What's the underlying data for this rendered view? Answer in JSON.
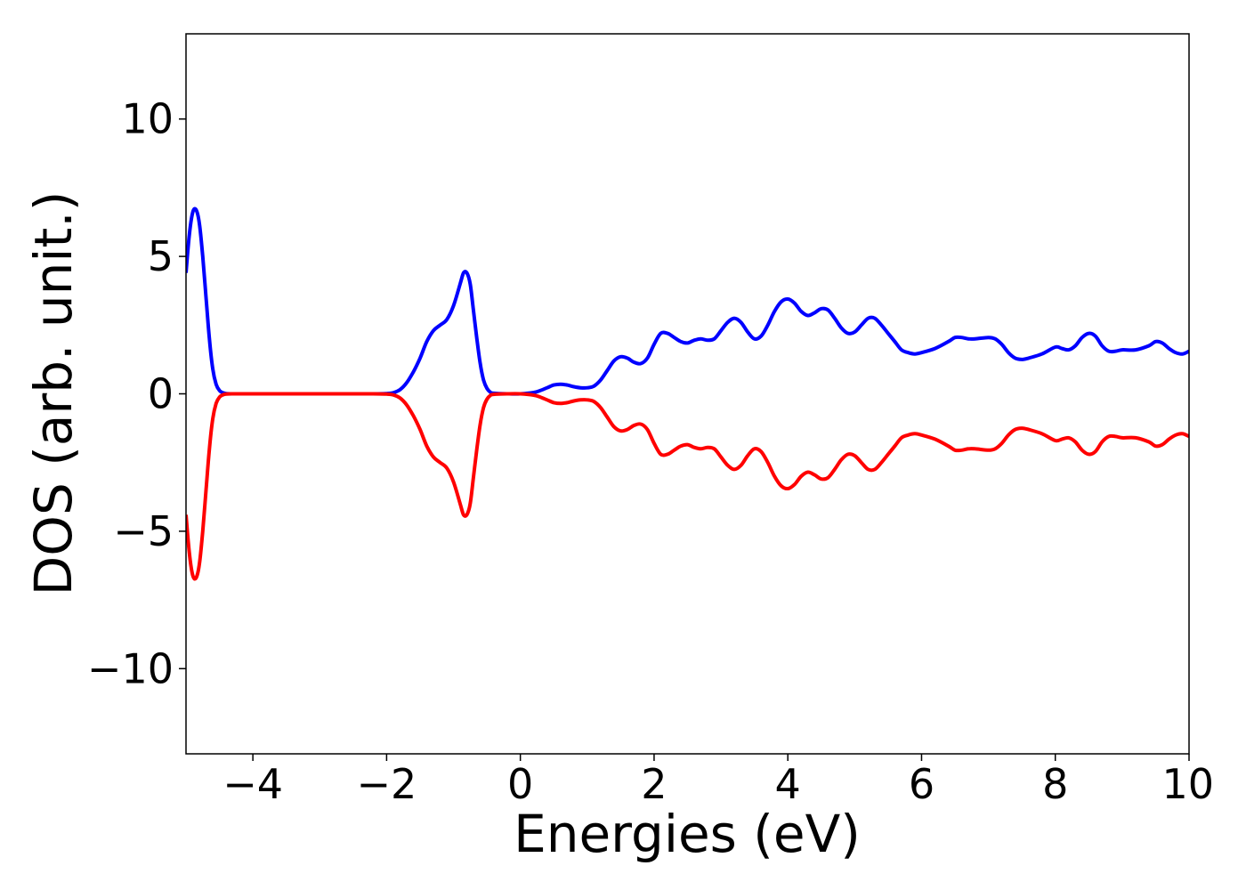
{
  "chart_data": {
    "type": "line",
    "title": "",
    "xlabel": "Energies (eV)",
    "ylabel": "DOS (arb. unit.)",
    "xlim": [
      -5,
      10
    ],
    "ylim": [
      -13.1,
      13.1
    ],
    "xticks": [
      -4,
      -2,
      0,
      2,
      4,
      6,
      8,
      10
    ],
    "xtick_labels": [
      "−4",
      "−2",
      "0",
      "2",
      "4",
      "6",
      "8",
      "10"
    ],
    "yticks": [
      -10,
      -5,
      0,
      5,
      10
    ],
    "ytick_labels": [
      "−10",
      "−5",
      "0",
      "5",
      "10"
    ],
    "grid": false,
    "legend": "none",
    "series": [
      {
        "color": "#0000ff",
        "points": [
          [
            -5.0,
            4.4
          ],
          [
            -4.95,
            5.8
          ],
          [
            -4.9,
            6.6
          ],
          [
            -4.85,
            6.7
          ],
          [
            -4.8,
            6.2
          ],
          [
            -4.75,
            5.0
          ],
          [
            -4.7,
            3.5
          ],
          [
            -4.65,
            2.0
          ],
          [
            -4.6,
            0.9
          ],
          [
            -4.55,
            0.35
          ],
          [
            -4.5,
            0.12
          ],
          [
            -4.45,
            0.04
          ],
          [
            -4.4,
            0.01
          ],
          [
            -4.3,
            0.0
          ],
          [
            -4.0,
            0.0
          ],
          [
            -3.0,
            0.0
          ],
          [
            -2.2,
            0.0
          ],
          [
            -2.0,
            0.01
          ],
          [
            -1.9,
            0.04
          ],
          [
            -1.8,
            0.15
          ],
          [
            -1.7,
            0.4
          ],
          [
            -1.6,
            0.8
          ],
          [
            -1.5,
            1.3
          ],
          [
            -1.4,
            1.9
          ],
          [
            -1.3,
            2.3
          ],
          [
            -1.2,
            2.5
          ],
          [
            -1.1,
            2.7
          ],
          [
            -1.0,
            3.2
          ],
          [
            -0.9,
            4.0
          ],
          [
            -0.85,
            4.4
          ],
          [
            -0.8,
            4.4
          ],
          [
            -0.75,
            4.0
          ],
          [
            -0.7,
            3.0
          ],
          [
            -0.65,
            2.0
          ],
          [
            -0.6,
            1.1
          ],
          [
            -0.55,
            0.5
          ],
          [
            -0.5,
            0.2
          ],
          [
            -0.45,
            0.06
          ],
          [
            -0.4,
            0.02
          ],
          [
            -0.2,
            0.0
          ],
          [
            0.0,
            0.0
          ],
          [
            0.2,
            0.05
          ],
          [
            0.3,
            0.12
          ],
          [
            0.4,
            0.22
          ],
          [
            0.5,
            0.32
          ],
          [
            0.6,
            0.35
          ],
          [
            0.7,
            0.32
          ],
          [
            0.8,
            0.26
          ],
          [
            0.9,
            0.22
          ],
          [
            1.0,
            0.22
          ],
          [
            1.1,
            0.28
          ],
          [
            1.2,
            0.5
          ],
          [
            1.3,
            0.85
          ],
          [
            1.4,
            1.2
          ],
          [
            1.5,
            1.35
          ],
          [
            1.6,
            1.3
          ],
          [
            1.7,
            1.15
          ],
          [
            1.8,
            1.1
          ],
          [
            1.9,
            1.3
          ],
          [
            2.0,
            1.8
          ],
          [
            2.1,
            2.2
          ],
          [
            2.2,
            2.2
          ],
          [
            2.3,
            2.05
          ],
          [
            2.4,
            1.9
          ],
          [
            2.5,
            1.85
          ],
          [
            2.6,
            1.95
          ],
          [
            2.7,
            2.0
          ],
          [
            2.8,
            1.95
          ],
          [
            2.9,
            2.0
          ],
          [
            3.0,
            2.3
          ],
          [
            3.1,
            2.6
          ],
          [
            3.2,
            2.75
          ],
          [
            3.3,
            2.6
          ],
          [
            3.4,
            2.25
          ],
          [
            3.5,
            2.0
          ],
          [
            3.6,
            2.1
          ],
          [
            3.7,
            2.5
          ],
          [
            3.8,
            3.0
          ],
          [
            3.9,
            3.35
          ],
          [
            4.0,
            3.45
          ],
          [
            4.1,
            3.3
          ],
          [
            4.2,
            3.0
          ],
          [
            4.3,
            2.85
          ],
          [
            4.4,
            2.95
          ],
          [
            4.5,
            3.1
          ],
          [
            4.6,
            3.05
          ],
          [
            4.7,
            2.75
          ],
          [
            4.8,
            2.4
          ],
          [
            4.9,
            2.2
          ],
          [
            5.0,
            2.25
          ],
          [
            5.1,
            2.5
          ],
          [
            5.2,
            2.75
          ],
          [
            5.3,
            2.75
          ],
          [
            5.4,
            2.5
          ],
          [
            5.5,
            2.2
          ],
          [
            5.6,
            1.9
          ],
          [
            5.7,
            1.6
          ],
          [
            5.8,
            1.5
          ],
          [
            5.9,
            1.45
          ],
          [
            6.0,
            1.5
          ],
          [
            6.2,
            1.65
          ],
          [
            6.4,
            1.9
          ],
          [
            6.5,
            2.05
          ],
          [
            6.6,
            2.05
          ],
          [
            6.7,
            2.0
          ],
          [
            6.8,
            2.0
          ],
          [
            7.0,
            2.05
          ],
          [
            7.1,
            2.0
          ],
          [
            7.2,
            1.8
          ],
          [
            7.3,
            1.5
          ],
          [
            7.4,
            1.3
          ],
          [
            7.5,
            1.25
          ],
          [
            7.6,
            1.3
          ],
          [
            7.8,
            1.45
          ],
          [
            8.0,
            1.7
          ],
          [
            8.1,
            1.65
          ],
          [
            8.2,
            1.6
          ],
          [
            8.3,
            1.75
          ],
          [
            8.4,
            2.05
          ],
          [
            8.5,
            2.2
          ],
          [
            8.6,
            2.1
          ],
          [
            8.7,
            1.75
          ],
          [
            8.8,
            1.55
          ],
          [
            8.9,
            1.55
          ],
          [
            9.0,
            1.6
          ],
          [
            9.2,
            1.6
          ],
          [
            9.4,
            1.75
          ],
          [
            9.5,
            1.9
          ],
          [
            9.6,
            1.85
          ],
          [
            9.7,
            1.65
          ],
          [
            9.8,
            1.5
          ],
          [
            9.9,
            1.45
          ],
          [
            10.0,
            1.55
          ]
        ]
      },
      {
        "color": "#ff0000",
        "points": [
          [
            -5.0,
            -4.4
          ],
          [
            -4.95,
            -5.8
          ],
          [
            -4.9,
            -6.6
          ],
          [
            -4.85,
            -6.7
          ],
          [
            -4.8,
            -6.2
          ],
          [
            -4.75,
            -5.0
          ],
          [
            -4.7,
            -3.5
          ],
          [
            -4.65,
            -2.0
          ],
          [
            -4.6,
            -0.9
          ],
          [
            -4.55,
            -0.35
          ],
          [
            -4.5,
            -0.12
          ],
          [
            -4.45,
            -0.04
          ],
          [
            -4.4,
            -0.01
          ],
          [
            -4.3,
            0.0
          ],
          [
            -4.0,
            0.0
          ],
          [
            -3.0,
            0.0
          ],
          [
            -2.2,
            0.0
          ],
          [
            -2.0,
            -0.01
          ],
          [
            -1.9,
            -0.04
          ],
          [
            -1.8,
            -0.15
          ],
          [
            -1.7,
            -0.4
          ],
          [
            -1.6,
            -0.8
          ],
          [
            -1.5,
            -1.3
          ],
          [
            -1.4,
            -1.9
          ],
          [
            -1.3,
            -2.3
          ],
          [
            -1.2,
            -2.5
          ],
          [
            -1.1,
            -2.7
          ],
          [
            -1.0,
            -3.2
          ],
          [
            -0.9,
            -4.0
          ],
          [
            -0.85,
            -4.4
          ],
          [
            -0.8,
            -4.4
          ],
          [
            -0.75,
            -4.0
          ],
          [
            -0.7,
            -3.0
          ],
          [
            -0.65,
            -2.0
          ],
          [
            -0.6,
            -1.1
          ],
          [
            -0.55,
            -0.5
          ],
          [
            -0.5,
            -0.2
          ],
          [
            -0.45,
            -0.06
          ],
          [
            -0.4,
            -0.02
          ],
          [
            -0.2,
            0.0
          ],
          [
            0.0,
            0.0
          ],
          [
            0.2,
            -0.05
          ],
          [
            0.3,
            -0.12
          ],
          [
            0.4,
            -0.22
          ],
          [
            0.5,
            -0.32
          ],
          [
            0.6,
            -0.35
          ],
          [
            0.7,
            -0.32
          ],
          [
            0.8,
            -0.26
          ],
          [
            0.9,
            -0.22
          ],
          [
            1.0,
            -0.22
          ],
          [
            1.1,
            -0.28
          ],
          [
            1.2,
            -0.5
          ],
          [
            1.3,
            -0.85
          ],
          [
            1.4,
            -1.2
          ],
          [
            1.5,
            -1.35
          ],
          [
            1.6,
            -1.3
          ],
          [
            1.7,
            -1.15
          ],
          [
            1.8,
            -1.1
          ],
          [
            1.9,
            -1.3
          ],
          [
            2.0,
            -1.8
          ],
          [
            2.1,
            -2.2
          ],
          [
            2.2,
            -2.2
          ],
          [
            2.3,
            -2.05
          ],
          [
            2.4,
            -1.9
          ],
          [
            2.5,
            -1.85
          ],
          [
            2.6,
            -1.95
          ],
          [
            2.7,
            -2.0
          ],
          [
            2.8,
            -1.95
          ],
          [
            2.9,
            -2.0
          ],
          [
            3.0,
            -2.3
          ],
          [
            3.1,
            -2.6
          ],
          [
            3.2,
            -2.75
          ],
          [
            3.3,
            -2.6
          ],
          [
            3.4,
            -2.25
          ],
          [
            3.5,
            -2.0
          ],
          [
            3.6,
            -2.1
          ],
          [
            3.7,
            -2.5
          ],
          [
            3.8,
            -3.0
          ],
          [
            3.9,
            -3.35
          ],
          [
            4.0,
            -3.45
          ],
          [
            4.1,
            -3.3
          ],
          [
            4.2,
            -3.0
          ],
          [
            4.3,
            -2.85
          ],
          [
            4.4,
            -2.95
          ],
          [
            4.5,
            -3.1
          ],
          [
            4.6,
            -3.05
          ],
          [
            4.7,
            -2.75
          ],
          [
            4.8,
            -2.4
          ],
          [
            4.9,
            -2.2
          ],
          [
            5.0,
            -2.25
          ],
          [
            5.1,
            -2.5
          ],
          [
            5.2,
            -2.75
          ],
          [
            5.3,
            -2.75
          ],
          [
            5.4,
            -2.5
          ],
          [
            5.5,
            -2.2
          ],
          [
            5.6,
            -1.9
          ],
          [
            5.7,
            -1.6
          ],
          [
            5.8,
            -1.5
          ],
          [
            5.9,
            -1.45
          ],
          [
            6.0,
            -1.5
          ],
          [
            6.2,
            -1.65
          ],
          [
            6.4,
            -1.9
          ],
          [
            6.5,
            -2.05
          ],
          [
            6.6,
            -2.05
          ],
          [
            6.7,
            -2.0
          ],
          [
            6.8,
            -2.0
          ],
          [
            7.0,
            -2.05
          ],
          [
            7.1,
            -2.0
          ],
          [
            7.2,
            -1.8
          ],
          [
            7.3,
            -1.5
          ],
          [
            7.4,
            -1.3
          ],
          [
            7.5,
            -1.25
          ],
          [
            7.6,
            -1.3
          ],
          [
            7.8,
            -1.45
          ],
          [
            8.0,
            -1.7
          ],
          [
            8.1,
            -1.65
          ],
          [
            8.2,
            -1.6
          ],
          [
            8.3,
            -1.75
          ],
          [
            8.4,
            -2.05
          ],
          [
            8.5,
            -2.2
          ],
          [
            8.6,
            -2.1
          ],
          [
            8.7,
            -1.75
          ],
          [
            8.8,
            -1.55
          ],
          [
            8.9,
            -1.55
          ],
          [
            9.0,
            -1.6
          ],
          [
            9.2,
            -1.6
          ],
          [
            9.4,
            -1.75
          ],
          [
            9.5,
            -1.9
          ],
          [
            9.6,
            -1.85
          ],
          [
            9.7,
            -1.65
          ],
          [
            9.8,
            -1.5
          ],
          [
            9.9,
            -1.45
          ],
          [
            10.0,
            -1.55
          ]
        ]
      }
    ]
  }
}
